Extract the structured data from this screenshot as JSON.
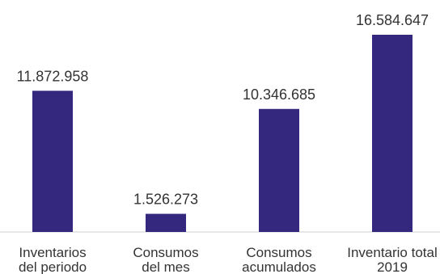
{
  "chart_data": {
    "type": "bar",
    "categories": [
      [
        "Inventarios",
        "del periodo"
      ],
      [
        "Consumos",
        "del mes"
      ],
      [
        "Consumos",
        "acumulados"
      ],
      [
        "Inventario total",
        "2019"
      ]
    ],
    "values": [
      11872958,
      1526273,
      10346685,
      16584647
    ],
    "data_labels": [
      "11.872.958",
      "1.526.273",
      "10.346.685",
      "16.584.647"
    ],
    "bar_color": "#33287e",
    "axis_color": "#cfcfcf",
    "ylim": [
      0,
      16584647
    ],
    "grid": false,
    "legend": "none"
  }
}
